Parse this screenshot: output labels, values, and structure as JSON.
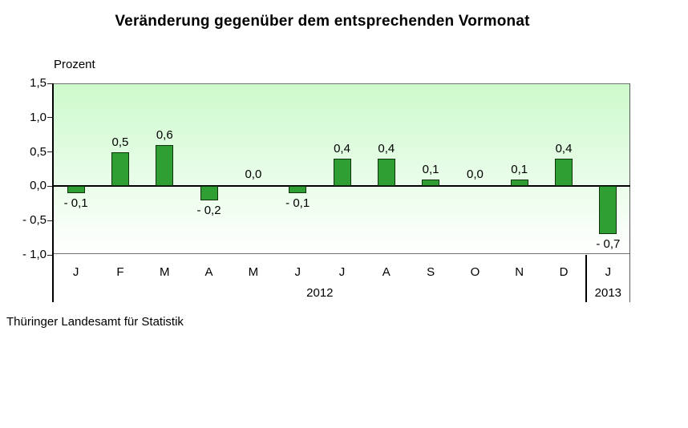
{
  "title": "Veränderung gegenüber dem entsprechenden Vormonat",
  "source": "Thüringer Landesamt für Statistik",
  "chart_data": {
    "type": "bar",
    "title": "Veränderung gegenüber dem entsprechenden Vormonat",
    "xlabel": "",
    "ylabel": "Prozent",
    "categories": [
      "J",
      "F",
      "M",
      "A",
      "M",
      "J",
      "J",
      "A",
      "S",
      "O",
      "N",
      "D",
      "J"
    ],
    "values": [
      -0.1,
      0.5,
      0.6,
      -0.2,
      0.0,
      -0.1,
      0.4,
      0.4,
      0.1,
      0.0,
      0.1,
      0.4,
      -0.7
    ],
    "value_labels": [
      "- 0,1",
      "0,5",
      "0,6",
      "- 0,2",
      "0,0",
      "- 0,1",
      "0,4",
      "0,4",
      "0,1",
      "0,0",
      "0,1",
      "0,4",
      "- 0,7"
    ],
    "year_groups": [
      {
        "label": "2012",
        "span": 12
      },
      {
        "label": "2013",
        "span": 1
      }
    ],
    "ylim": [
      -1.0,
      1.5
    ],
    "yticks": [
      {
        "value": 1.5,
        "label": "1,5"
      },
      {
        "value": 1.0,
        "label": "1,0"
      },
      {
        "value": 0.5,
        "label": "0,5"
      },
      {
        "value": 0.0,
        "label": "0,0"
      },
      {
        "value": -0.5,
        "label": "- 0,5"
      },
      {
        "value": -1.0,
        "label": "- 1,0"
      }
    ],
    "grid": false,
    "legend": false,
    "colors": {
      "bar_fill": "#2f9e33",
      "bar_border": "#0d330d",
      "plot_bg_top": "#ccfacc",
      "plot_bg_bottom": "#ffffff",
      "axis": "#000000",
      "frame": "#737373"
    }
  }
}
